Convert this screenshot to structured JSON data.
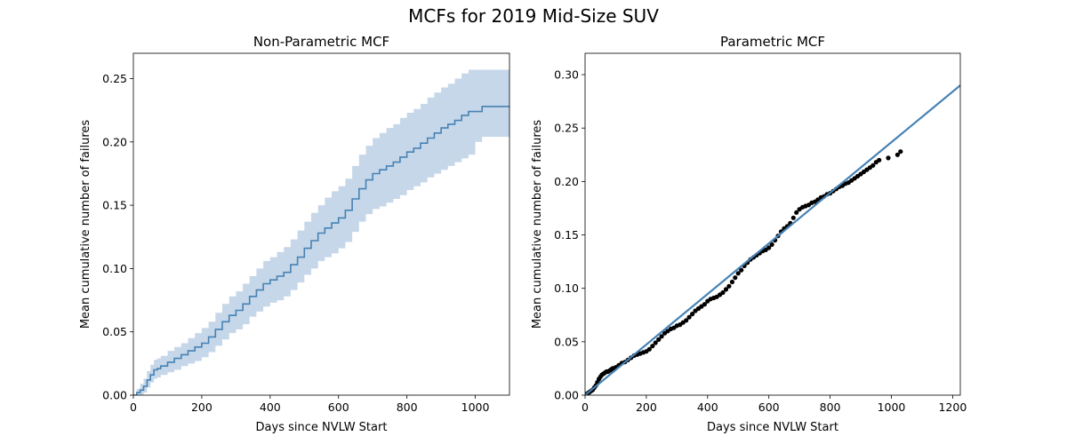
{
  "figure": {
    "suptitle": "MCFs for 2019 Mid-Size SUV"
  },
  "colors": {
    "line": "#4682b4",
    "band": "#c6d7e9",
    "points": "#000000",
    "axes": "#000000"
  },
  "chart_data": [
    {
      "type": "line",
      "title": "Non-Parametric MCF",
      "xlabel": "Days since NVLW Start",
      "ylabel": "Mean cumulative number of failures",
      "xlim": [
        0,
        1100
      ],
      "ylim": [
        0,
        0.27
      ],
      "xticks": [
        "0",
        "200",
        "400",
        "600",
        "800",
        "1000"
      ],
      "yticks": [
        "0.00",
        "0.05",
        "0.10",
        "0.15",
        "0.20",
        "0.25"
      ],
      "grid": false,
      "step": true,
      "series": [
        {
          "role": "mcf",
          "x": [
            0,
            10,
            20,
            30,
            40,
            50,
            60,
            70,
            80,
            100,
            120,
            140,
            160,
            180,
            200,
            220,
            240,
            260,
            280,
            300,
            320,
            340,
            360,
            380,
            400,
            420,
            440,
            460,
            480,
            500,
            520,
            540,
            560,
            580,
            600,
            620,
            640,
            660,
            680,
            700,
            720,
            740,
            760,
            780,
            800,
            820,
            840,
            860,
            880,
            900,
            920,
            940,
            960,
            980,
            1000,
            1020,
            1100
          ],
          "y": [
            0,
            0.002,
            0.004,
            0.007,
            0.012,
            0.016,
            0.02,
            0.021,
            0.023,
            0.026,
            0.029,
            0.032,
            0.035,
            0.038,
            0.041,
            0.046,
            0.052,
            0.058,
            0.063,
            0.067,
            0.072,
            0.078,
            0.083,
            0.088,
            0.091,
            0.094,
            0.097,
            0.103,
            0.109,
            0.116,
            0.122,
            0.128,
            0.132,
            0.136,
            0.14,
            0.146,
            0.155,
            0.163,
            0.17,
            0.175,
            0.178,
            0.181,
            0.184,
            0.188,
            0.192,
            0.195,
            0.199,
            0.203,
            0.207,
            0.211,
            0.214,
            0.217,
            0.221,
            0.224,
            0.224,
            0.228,
            0.228
          ]
        },
        {
          "role": "confidence-lower",
          "y": [
            0,
            0,
            0,
            0.002,
            0.006,
            0.01,
            0.013,
            0.014,
            0.016,
            0.018,
            0.02,
            0.023,
            0.025,
            0.027,
            0.03,
            0.034,
            0.039,
            0.044,
            0.049,
            0.052,
            0.056,
            0.062,
            0.066,
            0.07,
            0.073,
            0.075,
            0.078,
            0.083,
            0.089,
            0.095,
            0.1,
            0.106,
            0.109,
            0.112,
            0.116,
            0.121,
            0.129,
            0.137,
            0.143,
            0.147,
            0.149,
            0.152,
            0.155,
            0.158,
            0.162,
            0.165,
            0.168,
            0.172,
            0.175,
            0.178,
            0.181,
            0.184,
            0.187,
            0.19,
            0.2,
            0.204,
            0.204
          ]
        },
        {
          "role": "confidence-upper",
          "y": [
            0,
            0.005,
            0.009,
            0.013,
            0.019,
            0.024,
            0.028,
            0.029,
            0.031,
            0.035,
            0.038,
            0.041,
            0.045,
            0.049,
            0.053,
            0.058,
            0.065,
            0.072,
            0.078,
            0.082,
            0.088,
            0.094,
            0.1,
            0.106,
            0.109,
            0.113,
            0.117,
            0.123,
            0.13,
            0.137,
            0.144,
            0.15,
            0.156,
            0.161,
            0.165,
            0.171,
            0.181,
            0.19,
            0.197,
            0.203,
            0.207,
            0.211,
            0.214,
            0.219,
            0.223,
            0.226,
            0.23,
            0.235,
            0.239,
            0.243,
            0.246,
            0.25,
            0.254,
            0.257,
            0.257,
            0.257,
            0.257
          ]
        }
      ]
    },
    {
      "type": "scatter",
      "title": "Parametric MCF",
      "xlabel": "Days since NVLW Start",
      "ylabel": "Mean cumulative number of failures",
      "xlim": [
        0,
        1225
      ],
      "ylim": [
        0,
        0.32
      ],
      "xticks": [
        "0",
        "200",
        "400",
        "600",
        "800",
        "1000",
        "1200"
      ],
      "yticks": [
        "0.00",
        "0.05",
        "0.10",
        "0.15",
        "0.20",
        "0.25",
        "0.30"
      ],
      "grid": false,
      "series": [
        {
          "role": "observed-points",
          "x": [
            5,
            10,
            15,
            20,
            25,
            30,
            35,
            40,
            45,
            50,
            55,
            60,
            65,
            70,
            75,
            80,
            85,
            90,
            95,
            100,
            110,
            120,
            130,
            140,
            150,
            160,
            170,
            180,
            190,
            200,
            210,
            220,
            230,
            240,
            250,
            260,
            270,
            280,
            290,
            300,
            310,
            320,
            330,
            340,
            350,
            360,
            370,
            380,
            390,
            400,
            410,
            420,
            430,
            440,
            450,
            460,
            470,
            480,
            490,
            500,
            510,
            520,
            530,
            540,
            550,
            560,
            570,
            580,
            590,
            600,
            610,
            620,
            630,
            640,
            650,
            660,
            670,
            680,
            690,
            700,
            710,
            720,
            730,
            740,
            750,
            760,
            770,
            780,
            790,
            800,
            810,
            820,
            830,
            840,
            850,
            860,
            870,
            880,
            890,
            900,
            910,
            920,
            930,
            940,
            950,
            960,
            990,
            1020,
            1030
          ],
          "y": [
            0.001,
            0.002,
            0.003,
            0.004,
            0.005,
            0.007,
            0.009,
            0.012,
            0.015,
            0.017,
            0.019,
            0.02,
            0.021,
            0.022,
            0.022,
            0.023,
            0.024,
            0.025,
            0.025,
            0.026,
            0.028,
            0.03,
            0.031,
            0.033,
            0.035,
            0.037,
            0.038,
            0.039,
            0.04,
            0.041,
            0.043,
            0.046,
            0.049,
            0.052,
            0.055,
            0.058,
            0.06,
            0.062,
            0.063,
            0.065,
            0.066,
            0.068,
            0.07,
            0.073,
            0.076,
            0.079,
            0.081,
            0.083,
            0.085,
            0.088,
            0.09,
            0.091,
            0.092,
            0.094,
            0.096,
            0.099,
            0.102,
            0.106,
            0.11,
            0.114,
            0.117,
            0.121,
            0.124,
            0.127,
            0.129,
            0.131,
            0.133,
            0.135,
            0.136,
            0.138,
            0.141,
            0.145,
            0.149,
            0.153,
            0.156,
            0.158,
            0.161,
            0.166,
            0.171,
            0.174,
            0.176,
            0.177,
            0.178,
            0.18,
            0.181,
            0.183,
            0.185,
            0.186,
            0.188,
            0.189,
            0.191,
            0.193,
            0.195,
            0.196,
            0.198,
            0.199,
            0.201,
            0.203,
            0.205,
            0.207,
            0.209,
            0.211,
            0.213,
            0.215,
            0.218,
            0.22,
            0.222,
            0.225,
            0.228
          ]
        },
        {
          "role": "fitted-line",
          "x": [
            0,
            1225
          ],
          "y": [
            0,
            0.29
          ]
        }
      ]
    }
  ]
}
